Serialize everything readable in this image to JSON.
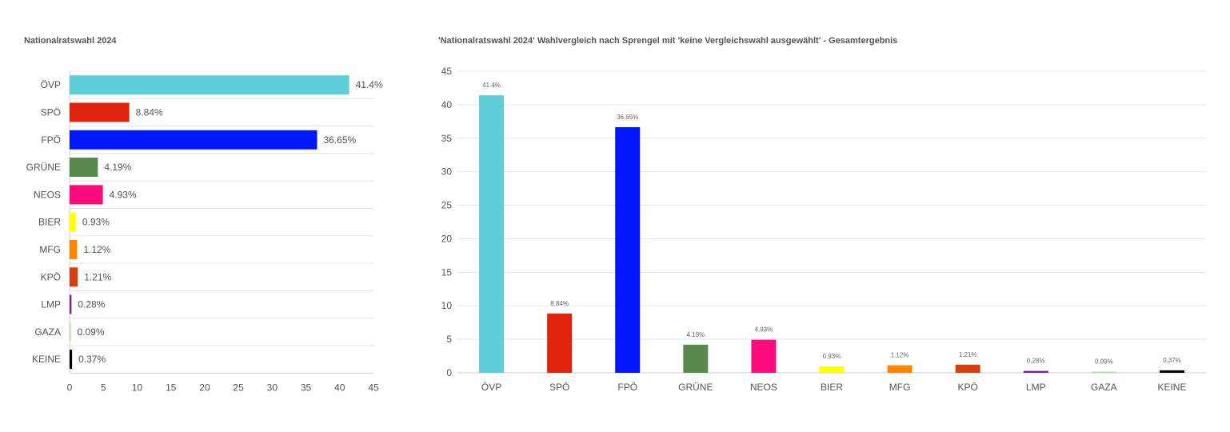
{
  "left_chart": {
    "title": "Nationalratswahl 2024"
  },
  "right_chart": {
    "title": "'Nationalratswahl 2024' Wahlvergleich nach  Sprengel mit 'keine Vergleichswahl ausgewählt' - Gesamtergebnis"
  },
  "chart_data": [
    {
      "type": "bar",
      "orientation": "horizontal",
      "title": "Nationalratswahl 2024",
      "categories": [
        "ÖVP",
        "SPÖ",
        "FPÖ",
        "GRÜNE",
        "NEOS",
        "BIER",
        "MFG",
        "KPÖ",
        "LMP",
        "GAZA",
        "KEINE"
      ],
      "values": [
        41.4,
        8.84,
        36.65,
        4.19,
        4.93,
        0.93,
        1.12,
        1.21,
        0.28,
        0.09,
        0.37
      ],
      "data_labels": [
        "41.4%",
        "8.84%",
        "36.65%",
        "4.19%",
        "4.93%",
        "0.93%",
        "1.12%",
        "1.21%",
        "0.28%",
        "0.09%",
        "0.37%"
      ],
      "colors": [
        "#5ecfd8",
        "#e0230c",
        "#0016ff",
        "#5a8a4b",
        "#ff0a7a",
        "#ffff00",
        "#ff8400",
        "#d5400e",
        "#7a1fa2",
        "#a8e6a1",
        "#000000"
      ],
      "xlim": [
        0,
        45
      ],
      "xticks": [
        0,
        5,
        10,
        15,
        20,
        25,
        30,
        35,
        40,
        45
      ],
      "grid": false
    },
    {
      "type": "bar",
      "orientation": "vertical",
      "title": "'Nationalratswahl 2024' Wahlvergleich nach  Sprengel mit 'keine Vergleichswahl ausgewählt' - Gesamtergebnis",
      "categories": [
        "ÖVP",
        "SPÖ",
        "FPÖ",
        "GRÜNE",
        "NEOS",
        "BIER",
        "MFG",
        "KPÖ",
        "LMP",
        "GAZA",
        "KEINE"
      ],
      "values": [
        41.4,
        8.84,
        36.65,
        4.19,
        4.93,
        0.93,
        1.12,
        1.21,
        0.28,
        0.09,
        0.37
      ],
      "data_labels": [
        "41.4%",
        "8.84%",
        "36.65%",
        "4.19%",
        "4.93%",
        "0.93%",
        "1.12%",
        "1.21%",
        "0.28%",
        "0.09%",
        "0.37%"
      ],
      "colors": [
        "#5ecfd8",
        "#e0230c",
        "#0016ff",
        "#5a8a4b",
        "#ff0a7a",
        "#ffff00",
        "#ff8400",
        "#d5400e",
        "#7a1fa2",
        "#a8e6a1",
        "#000000"
      ],
      "ylim": [
        0,
        45
      ],
      "yticks": [
        0,
        5,
        10,
        15,
        20,
        25,
        30,
        35,
        40,
        45
      ],
      "grid": true
    }
  ]
}
